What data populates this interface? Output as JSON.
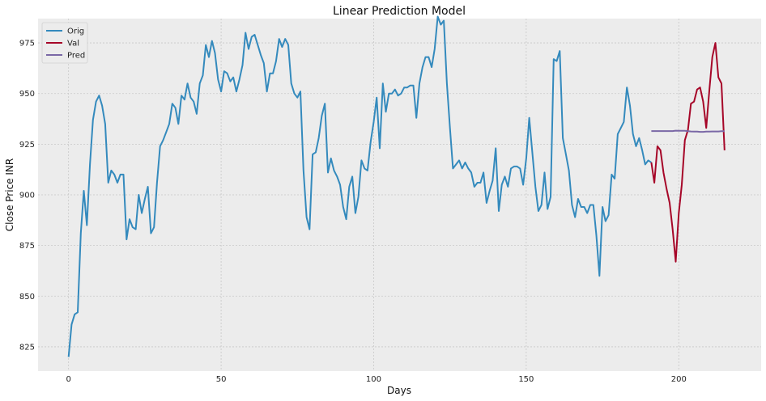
{
  "chart_data": {
    "type": "line",
    "title": "Linear Prediction Model",
    "xlabel": "Days",
    "ylabel": "Close Price INR",
    "xlim": [
      -10,
      227
    ],
    "ylim": [
      813,
      987
    ],
    "xticks": [
      0,
      50,
      100,
      150,
      200
    ],
    "yticks": [
      825,
      850,
      875,
      900,
      925,
      950,
      975
    ],
    "grid": true,
    "legend_position": "top-left",
    "colors": {
      "background": "#ececec",
      "grid": "#c8c8c8"
    },
    "series": [
      {
        "name": "Orig",
        "color": "#348abd",
        "x_start": 0,
        "values": [
          820,
          836,
          841,
          842,
          881,
          902,
          885,
          915,
          937,
          946,
          949,
          944,
          935,
          906,
          912,
          910,
          906,
          910,
          910,
          878,
          888,
          884,
          883,
          900,
          891,
          898,
          904,
          881,
          884,
          906,
          924,
          927,
          931,
          935,
          945,
          943,
          935,
          949,
          947,
          955,
          948,
          946,
          940,
          955,
          959,
          974,
          968,
          976,
          970,
          957,
          951,
          961,
          960,
          956,
          958,
          951,
          957,
          964,
          980,
          972,
          978,
          979,
          974,
          969,
          965,
          951,
          960,
          960,
          966,
          977,
          973,
          977,
          974,
          955,
          950,
          948,
          951,
          912,
          889,
          883,
          920,
          921,
          928,
          939,
          945,
          911,
          918,
          912,
          909,
          905,
          894,
          888,
          904,
          909,
          891,
          899,
          917,
          913,
          912,
          926,
          936,
          948,
          923,
          955,
          941,
          950,
          950,
          952,
          949,
          950,
          953,
          953,
          954,
          954,
          938,
          955,
          963,
          968,
          968,
          963,
          972,
          988,
          984,
          986,
          955,
          933,
          913,
          915,
          917,
          913,
          916,
          913,
          911,
          904,
          906,
          906,
          911,
          896,
          902,
          907,
          923,
          892,
          905,
          909,
          904,
          913,
          914,
          914,
          913,
          905,
          918,
          938,
          921,
          904,
          892,
          895,
          911,
          893,
          899,
          967,
          966,
          971,
          928,
          920,
          912,
          895,
          889,
          898,
          894,
          894,
          891,
          895,
          895,
          880,
          860,
          894,
          887,
          890,
          910,
          908,
          930,
          933,
          936,
          953,
          944,
          930,
          924,
          928,
          922,
          915,
          917,
          916
        ]
      },
      {
        "name": "Val",
        "color": "#a60628",
        "x_start": 191,
        "values": [
          916,
          906,
          924,
          922,
          911,
          903,
          896,
          883,
          867,
          891,
          905,
          927,
          932,
          945,
          946,
          952,
          953,
          946,
          933,
          951,
          968,
          975,
          958,
          955,
          922
        ]
      },
      {
        "name": "Pred",
        "color": "#7a68a6",
        "x_start": 191,
        "values": [
          931.5,
          931.5,
          931.5,
          931.5,
          931.5,
          931.5,
          931.5,
          931.5,
          931.7,
          931.6,
          931.6,
          931.6,
          931.4,
          931.3,
          931.2,
          931.2,
          931.1,
          931.1,
          931.2,
          931.2,
          931.3,
          931.3,
          931.3,
          931.4,
          931.4
        ]
      }
    ]
  }
}
